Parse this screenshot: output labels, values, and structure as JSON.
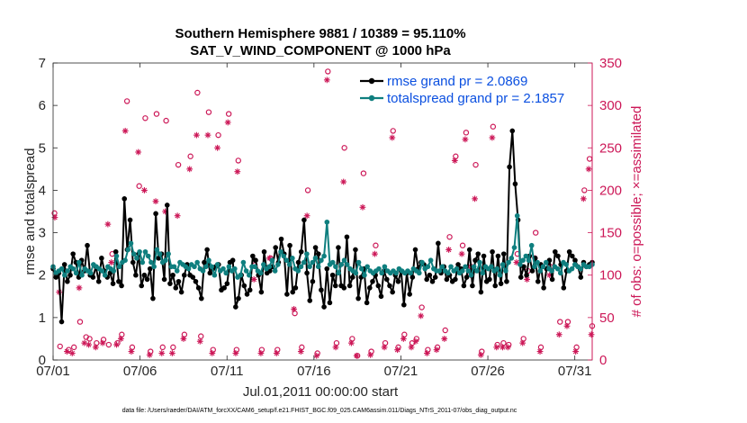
{
  "chart_data": {
    "type": "line",
    "title_line1": "Southern Hemisphere 9881 / 10389 = 95.110%",
    "title_line2": "SAT_V_WIND_COMPONENT @ 1000 hPa",
    "xlabel": "Jul.01,2011 00:00:00 start",
    "ylabel_left": "rmse and totalspread",
    "ylabel_right": "# of obs: o=possible; ×=assimilated",
    "footer": "data file: /Users/raeder/DAI/ATM_forcXX/CAM6_setup/f.e21.FHIST_BGC.f09_025.CAM6assim.011/Diags_NTrS_2011-07/obs_diag_output.nc",
    "x_range_days": [
      0,
      31
    ],
    "x_ticks": [
      {
        "day": 0,
        "label": "07/01"
      },
      {
        "day": 5,
        "label": "07/06"
      },
      {
        "day": 10,
        "label": "07/11"
      },
      {
        "day": 15,
        "label": "07/16"
      },
      {
        "day": 20,
        "label": "07/21"
      },
      {
        "day": 25,
        "label": "07/26"
      },
      {
        "day": 30,
        "label": "07/31"
      }
    ],
    "y_left_range": [
      0,
      7
    ],
    "y_left_ticks": [
      "0",
      "1",
      "2",
      "3",
      "4",
      "5",
      "6",
      "7"
    ],
    "y_right_range": [
      0,
      350
    ],
    "y_right_ticks": [
      "0",
      "50",
      "100",
      "150",
      "200",
      "250",
      "300",
      "350"
    ],
    "series": [
      {
        "name": "rmse grand pr = 2.0869",
        "color": "#000000",
        "axis": "left",
        "values": [
          2.15,
          1.95,
          2.05,
          0.9,
          2.25,
          1.85,
          2.0,
          2.5,
          2.3,
          1.95,
          2.35,
          2.1,
          2.7,
          2.0,
          1.95,
          2.2,
          1.85,
          2.4,
          2.1,
          1.95,
          2.05,
          1.8,
          2.55,
          1.85,
          1.75,
          3.8,
          2.6,
          3.3,
          2.3,
          2.0,
          2.5,
          1.75,
          2.0,
          1.9,
          2.15,
          1.45,
          3.45,
          2.4,
          2.5,
          1.9,
          3.65,
          1.8,
          2.0,
          1.7,
          1.85,
          1.6,
          2.0,
          2.25,
          2.0,
          1.95,
          1.85,
          1.7,
          1.45,
          2.3,
          2.6,
          2.05,
          2.15,
          2.2,
          2.25,
          1.65,
          1.7,
          1.8,
          2.3,
          2.35,
          1.25,
          1.45,
          2.0,
          1.75,
          1.55,
          1.65,
          2.45,
          2.35,
          2.0,
          1.6,
          2.55,
          2.05,
          2.1,
          2.2,
          2.65,
          2.3,
          2.85,
          2.5,
          1.55,
          2.7,
          1.6,
          1.7,
          2.3,
          2.55,
          3.3,
          2.05,
          1.4,
          1.85,
          2.65,
          2.5,
          1.65,
          1.25,
          2.15,
          1.35,
          2.0,
          1.75,
          2.65,
          1.75,
          1.7,
          2.9,
          1.75,
          1.95,
          2.6,
          1.45,
          1.95,
          2.15,
          1.35,
          1.7,
          1.85,
          2.0,
          1.75,
          1.5,
          2.1,
          1.9,
          1.75,
          1.6,
          2.0,
          1.85,
          2.1,
          1.3,
          2.05,
          1.55,
          1.95,
          2.6,
          2.15,
          2.3,
          2.25,
          1.9,
          2.0,
          1.85,
          1.95,
          2.75,
          2.05,
          2.2,
          1.9,
          2.0,
          1.85,
          1.9,
          2.25,
          2.15,
          1.75,
          1.95,
          2.6,
          1.75,
          2.35,
          2.5,
          1.6,
          2.45,
          1.85,
          1.9,
          2.55,
          1.75,
          2.45,
          1.8,
          2.5,
          1.85,
          4.55,
          5.4,
          4.15,
          3.3,
          1.95,
          2.2,
          2.0,
          2.45,
          2.1,
          2.4,
          1.85,
          2.25,
          1.7,
          2.15,
          2.35,
          1.9,
          2.55,
          2.45,
          2.25,
          1.7,
          2.1,
          2.55,
          2.45,
          2.35,
          2.2,
          1.95,
          2.3,
          2.2,
          2.25,
          2.3
        ],
        "note": "6 samples per day"
      },
      {
        "name": "totalspread grand pr = 2.1857",
        "color": "#0f7f7f",
        "axis": "left",
        "values": [
          2.2,
          2.05,
          2.1,
          2.15,
          2.0,
          2.1,
          2.2,
          2.15,
          2.05,
          2.3,
          2.0,
          2.15,
          2.1,
          2.05,
          2.25,
          2.2,
          2.15,
          2.1,
          2.0,
          2.2,
          2.15,
          2.1,
          2.45,
          2.2,
          2.3,
          2.35,
          2.6,
          2.75,
          2.5,
          2.4,
          2.55,
          2.3,
          2.55,
          2.45,
          2.3,
          2.2,
          2.6,
          2.5,
          2.3,
          2.35,
          2.5,
          2.2,
          2.2,
          2.1,
          2.3,
          2.25,
          2.2,
          2.15,
          2.25,
          2.2,
          2.3,
          2.15,
          2.1,
          2.2,
          2.35,
          2.2,
          2.0,
          2.25,
          2.1,
          2.15,
          2.05,
          2.2,
          2.1,
          2.15,
          1.95,
          2.0,
          2.3,
          2.1,
          2.0,
          2.2,
          2.2,
          2.1,
          2.05,
          2.25,
          2.15,
          2.2,
          2.35,
          2.1,
          2.25,
          2.55,
          2.45,
          2.35,
          2.25,
          2.4,
          2.15,
          2.1,
          2.2,
          2.3,
          2.5,
          2.2,
          2.3,
          2.4,
          2.2,
          2.35,
          2.45,
          3.25,
          2.25,
          2.3,
          2.2,
          2.05,
          2.25,
          2.35,
          2.25,
          2.15,
          2.1,
          2.05,
          2.3,
          2.15,
          2.0,
          2.2,
          2.1,
          2.05,
          2.1,
          2.15,
          2.05,
          2.2,
          2.1,
          2.05,
          2.1,
          2.05,
          2.15,
          2.1,
          2.05,
          2.1,
          2.05,
          2.15,
          2.1,
          2.05,
          2.3,
          2.15,
          2.2,
          2.35,
          2.15,
          2.1,
          2.1,
          2.2,
          2.1,
          2.05,
          2.2,
          2.1,
          2.15,
          2.05,
          2.1,
          2.2,
          2.1,
          2.0,
          2.2,
          2.1,
          2.3,
          2.05,
          2.2,
          2.15,
          2.2,
          2.1,
          2.15,
          2.0,
          2.25,
          2.1,
          2.3,
          2.4,
          2.65,
          3.4,
          2.25,
          2.35,
          2.45,
          2.35,
          2.7,
          2.2,
          2.3,
          2.1,
          2.2,
          2.3,
          2.15,
          2.1,
          2.2,
          2.15,
          2.05,
          2.3,
          2.25,
          2.1,
          2.15,
          2.25,
          2.2,
          2.15,
          2.25,
          2.2,
          2.2,
          2.25
        ]
      }
    ],
    "obs_possible": {
      "marker": "o",
      "color": "#cc1757",
      "axis": "right",
      "values": [
        [
          0.08,
          173
        ],
        [
          0.4,
          16
        ],
        [
          0.9,
          12
        ],
        [
          1.2,
          15
        ],
        [
          1.55,
          45
        ],
        [
          1.9,
          27
        ],
        [
          2.1,
          25
        ],
        [
          2.5,
          20
        ],
        [
          2.9,
          24
        ],
        [
          3.2,
          18
        ],
        [
          3.4,
          125
        ],
        [
          3.7,
          20
        ],
        [
          3.95,
          30
        ],
        [
          4.25,
          305
        ],
        [
          4.55,
          15
        ],
        [
          4.95,
          205
        ],
        [
          5.3,
          285
        ],
        [
          5.6,
          10
        ],
        [
          5.95,
          290
        ],
        [
          6.3,
          15
        ],
        [
          6.5,
          282
        ],
        [
          6.9,
          15
        ],
        [
          7.2,
          230
        ],
        [
          7.55,
          30
        ],
        [
          7.9,
          240
        ],
        [
          8.3,
          315
        ],
        [
          8.5,
          28
        ],
        [
          8.95,
          292
        ],
        [
          9.2,
          12
        ],
        [
          9.5,
          265
        ],
        [
          10.1,
          290
        ],
        [
          10.55,
          12
        ],
        [
          10.65,
          235
        ],
        [
          11.6,
          112
        ],
        [
          12.0,
          12
        ],
        [
          12.5,
          120
        ],
        [
          12.9,
          12
        ],
        [
          13.9,
          55
        ],
        [
          14.3,
          15
        ],
        [
          14.65,
          200
        ],
        [
          15.2,
          8
        ],
        [
          15.8,
          340
        ],
        [
          16.3,
          20
        ],
        [
          16.75,
          250
        ],
        [
          17.2,
          25
        ],
        [
          17.5,
          5
        ],
        [
          17.85,
          220
        ],
        [
          18.3,
          10
        ],
        [
          18.55,
          135
        ],
        [
          19.1,
          20
        ],
        [
          19.55,
          270
        ],
        [
          19.85,
          15
        ],
        [
          20.2,
          30
        ],
        [
          20.65,
          20
        ],
        [
          20.9,
          25
        ],
        [
          21.2,
          62
        ],
        [
          21.55,
          12
        ],
        [
          22.1,
          15
        ],
        [
          22.55,
          35
        ],
        [
          22.8,
          145
        ],
        [
          23.15,
          240
        ],
        [
          23.55,
          135
        ],
        [
          23.75,
          268
        ],
        [
          24.05,
          110
        ],
        [
          24.3,
          230
        ],
        [
          24.65,
          10
        ],
        [
          25.3,
          275
        ],
        [
          25.55,
          18
        ],
        [
          25.9,
          20
        ],
        [
          26.2,
          18
        ],
        [
          26.7,
          125
        ],
        [
          27.05,
          25
        ],
        [
          27.3,
          105
        ],
        [
          27.75,
          150
        ],
        [
          28.05,
          15
        ],
        [
          28.6,
          110
        ],
        [
          29.15,
          45
        ],
        [
          29.6,
          45
        ],
        [
          30.1,
          15
        ],
        [
          30.55,
          200
        ],
        [
          30.85,
          237
        ],
        [
          31.0,
          40
        ]
      ]
    },
    "obs_assimilated": {
      "marker": "*",
      "color": "#cc1757",
      "axis": "right",
      "values": [
        [
          0.1,
          168
        ],
        [
          0.35,
          80
        ],
        [
          0.8,
          10
        ],
        [
          1.1,
          8
        ],
        [
          1.5,
          85
        ],
        [
          1.8,
          20
        ],
        [
          2.05,
          18
        ],
        [
          2.45,
          15
        ],
        [
          2.85,
          20
        ],
        [
          3.15,
          160
        ],
        [
          3.35,
          115
        ],
        [
          3.65,
          18
        ],
        [
          3.9,
          25
        ],
        [
          4.15,
          270
        ],
        [
          4.5,
          10
        ],
        [
          4.9,
          245
        ],
        [
          5.25,
          200
        ],
        [
          5.55,
          6
        ],
        [
          5.9,
          187
        ],
        [
          6.25,
          8
        ],
        [
          6.45,
          175
        ],
        [
          6.85,
          8
        ],
        [
          7.15,
          170
        ],
        [
          7.5,
          25
        ],
        [
          7.85,
          225
        ],
        [
          8.25,
          265
        ],
        [
          8.45,
          22
        ],
        [
          8.9,
          265
        ],
        [
          9.15,
          8
        ],
        [
          9.45,
          250
        ],
        [
          10.05,
          280
        ],
        [
          10.5,
          8
        ],
        [
          10.6,
          222
        ],
        [
          11.55,
          95
        ],
        [
          11.95,
          8
        ],
        [
          12.45,
          120
        ],
        [
          12.85,
          8
        ],
        [
          13.85,
          60
        ],
        [
          14.25,
          10
        ],
        [
          14.6,
          170
        ],
        [
          15.15,
          5
        ],
        [
          15.75,
          330
        ],
        [
          16.25,
          15
        ],
        [
          16.7,
          210
        ],
        [
          17.15,
          20
        ],
        [
          17.45,
          5
        ],
        [
          17.8,
          180
        ],
        [
          18.25,
          6
        ],
        [
          18.5,
          125
        ],
        [
          19.05,
          15
        ],
        [
          19.5,
          262
        ],
        [
          19.8,
          12
        ],
        [
          20.15,
          25
        ],
        [
          20.6,
          15
        ],
        [
          20.85,
          22
        ],
        [
          21.15,
          52
        ],
        [
          21.5,
          8
        ],
        [
          22.05,
          12
        ],
        [
          22.5,
          25
        ],
        [
          22.75,
          130
        ],
        [
          23.1,
          235
        ],
        [
          23.5,
          125
        ],
        [
          23.7,
          260
        ],
        [
          24.0,
          100
        ],
        [
          24.25,
          190
        ],
        [
          24.6,
          6
        ],
        [
          25.25,
          262
        ],
        [
          25.5,
          15
        ],
        [
          25.85,
          15
        ],
        [
          26.15,
          15
        ],
        [
          26.65,
          115
        ],
        [
          27.0,
          20
        ],
        [
          27.25,
          95
        ],
        [
          27.7,
          120
        ],
        [
          28.0,
          10
        ],
        [
          28.55,
          100
        ],
        [
          29.1,
          30
        ],
        [
          29.55,
          40
        ],
        [
          30.05,
          10
        ],
        [
          30.5,
          190
        ],
        [
          30.8,
          225
        ],
        [
          30.95,
          30
        ]
      ]
    }
  }
}
